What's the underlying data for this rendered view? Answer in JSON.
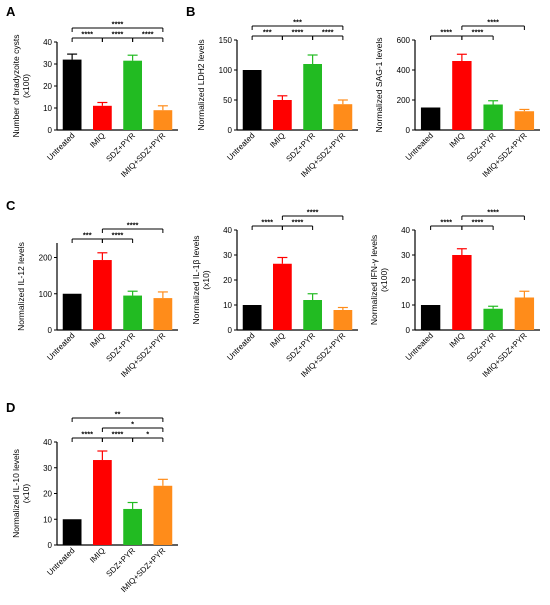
{
  "figure": {
    "panel_letters": [
      "A",
      "B",
      "C",
      "D"
    ]
  },
  "colors": {
    "Untreated": "#000000",
    "IMIQ": "#ff0000",
    "SDZ+PYR": "#22bb22",
    "IMIQ+SDZ+PYR": "#ff8c1a"
  },
  "chart_data": [
    {
      "panel": "A",
      "type": "bar",
      "categories": [
        "Untreated",
        "IMIQ",
        "SDZ+PYR",
        "IMIQ+SDZ+PYR"
      ],
      "values": [
        32,
        11,
        31.5,
        9
      ],
      "errors": [
        2.5,
        1.5,
        2.5,
        2
      ],
      "ylabel": [
        "Number of bradyzoite cysts",
        "(x100)"
      ],
      "ylim": [
        0,
        40
      ],
      "yticks": [
        0,
        10,
        20,
        30,
        40
      ],
      "significance": [
        {
          "from": 0,
          "to": 1,
          "label": "****",
          "level": 1
        },
        {
          "from": 1,
          "to": 2,
          "label": "****",
          "level": 1
        },
        {
          "from": 2,
          "to": 3,
          "label": "****",
          "level": 1
        },
        {
          "from": 0,
          "to": 3,
          "label": "****",
          "level": 2
        }
      ]
    },
    {
      "panel": "B",
      "type": "bar",
      "categories": [
        "Untreated",
        "IMIQ",
        "SDZ+PYR",
        "IMIQ+SDZ+PYR"
      ],
      "values": [
        100,
        50,
        110,
        43
      ],
      "errors": [
        0,
        7,
        15,
        7
      ],
      "ylabel": [
        "Normalized LDH2 levels"
      ],
      "ylim": [
        0,
        150
      ],
      "yticks": [
        0,
        50,
        100,
        150
      ],
      "significance": [
        {
          "from": 0,
          "to": 1,
          "label": "***",
          "level": 1
        },
        {
          "from": 1,
          "to": 2,
          "label": "****",
          "level": 1
        },
        {
          "from": 2,
          "to": 3,
          "label": "****",
          "level": 1
        },
        {
          "from": 0,
          "to": 3,
          "label": "***",
          "level": 2
        }
      ]
    },
    {
      "panel": "",
      "type": "bar",
      "categories": [
        "Untreated",
        "IMIQ",
        "SDZ+PYR",
        "IMIQ+SDZ+PYR"
      ],
      "values": [
        150,
        460,
        170,
        125
      ],
      "errors": [
        0,
        45,
        25,
        12
      ],
      "ylabel": [
        "Normalized SAG-1 levels"
      ],
      "ylim": [
        0,
        600
      ],
      "yticks": [
        0,
        200,
        400,
        600
      ],
      "significance": [
        {
          "from": 0,
          "to": 1,
          "label": "****",
          "level": 1
        },
        {
          "from": 1,
          "to": 2,
          "label": "****",
          "level": 1
        },
        {
          "from": 1,
          "to": 3,
          "label": "****",
          "level": 2
        }
      ]
    },
    {
      "panel": "C",
      "type": "bar",
      "categories": [
        "Untreated",
        "IMIQ",
        "SDZ+PYR",
        "IMIQ+SDZ+PYR"
      ],
      "values": [
        100,
        193,
        95,
        88
      ],
      "errors": [
        0,
        20,
        12,
        17
      ],
      "ylabel": [
        "Normalized IL-12 levels"
      ],
      "ylim": [
        0,
        240
      ],
      "yticks": [
        0,
        100,
        200
      ],
      "significance": [
        {
          "from": 0,
          "to": 1,
          "label": "***",
          "level": 1
        },
        {
          "from": 1,
          "to": 2,
          "label": "****",
          "level": 1
        },
        {
          "from": 1,
          "to": 3,
          "label": "****",
          "level": 2
        }
      ]
    },
    {
      "panel": "",
      "type": "bar",
      "categories": [
        "Untreated",
        "IMIQ",
        "SDZ+PYR",
        "IMIQ+SDZ+PYR"
      ],
      "values": [
        10,
        26.5,
        12,
        8
      ],
      "errors": [
        0,
        2.5,
        2.5,
        1
      ],
      "ylabel": [
        "Normalized IL-1β levels",
        "(x10)"
      ],
      "ylim": [
        0,
        40
      ],
      "yticks": [
        0,
        10,
        20,
        30,
        40
      ],
      "significance": [
        {
          "from": 0,
          "to": 1,
          "label": "****",
          "level": 1
        },
        {
          "from": 1,
          "to": 2,
          "label": "****",
          "level": 1
        },
        {
          "from": 1,
          "to": 3,
          "label": "****",
          "level": 2
        }
      ]
    },
    {
      "panel": "",
      "type": "bar",
      "categories": [
        "Untreated",
        "IMIQ",
        "SDZ+PYR",
        "IMIQ+SDZ+PYR"
      ],
      "values": [
        10,
        30,
        8.5,
        13
      ],
      "errors": [
        0,
        2.5,
        1,
        2.5
      ],
      "ylabel": [
        "Normalized IFN-γ levels",
        "(x100)"
      ],
      "ylim": [
        0,
        40
      ],
      "yticks": [
        0,
        10,
        20,
        30,
        40
      ],
      "significance": [
        {
          "from": 0,
          "to": 1,
          "label": "****",
          "level": 1
        },
        {
          "from": 1,
          "to": 2,
          "label": "****",
          "level": 1
        },
        {
          "from": 1,
          "to": 3,
          "label": "****",
          "level": 2
        }
      ]
    },
    {
      "panel": "D",
      "type": "bar",
      "categories": [
        "Untreated",
        "IMIQ",
        "SDZ+PYR",
        "IMIQ+SDZ+PYR"
      ],
      "values": [
        10,
        33,
        14,
        23
      ],
      "errors": [
        0,
        3.5,
        2.5,
        2.5
      ],
      "ylabel": [
        "Normalized IL-10 levels",
        "(x10)"
      ],
      "ylim": [
        0,
        40
      ],
      "yticks": [
        0,
        10,
        20,
        30,
        40
      ],
      "significance": [
        {
          "from": 0,
          "to": 1,
          "label": "****",
          "level": 1
        },
        {
          "from": 1,
          "to": 2,
          "label": "****",
          "level": 1
        },
        {
          "from": 2,
          "to": 3,
          "label": "*",
          "level": 1
        },
        {
          "from": 1,
          "to": 3,
          "label": "*",
          "level": 2
        },
        {
          "from": 0,
          "to": 3,
          "label": "**",
          "level": 3
        }
      ]
    }
  ]
}
